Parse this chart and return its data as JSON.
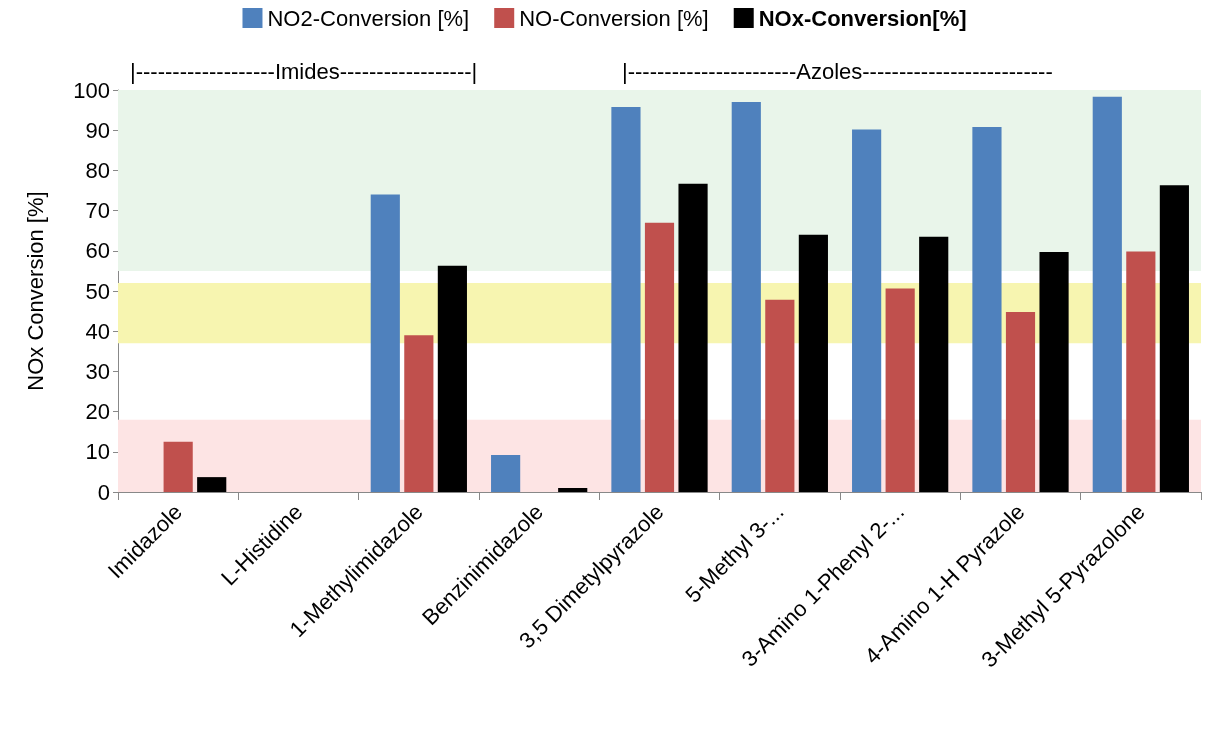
{
  "chart_data": {
    "type": "bar",
    "ylabel": "NOx Conversion [%]",
    "categories": [
      "Imidazole",
      "L-Histidine",
      "1-Methylimidazole",
      "Benzinimidazole",
      "3,5 Dimetylpyrazole",
      "5-Methyl 3-...",
      "3-Amino 1-Phenyl 2-...",
      "4-Amino 1-H Pyrazole",
      "3-Methyl 5-Pyrazolone"
    ],
    "series": [
      {
        "name": "NO2-Conversion [%]",
        "color": "#4f81bd",
        "values": [
          0,
          0,
          74,
          9.2,
          95.8,
          97,
          90.2,
          90.8,
          98.3
        ]
      },
      {
        "name": "NO-Conversion [%]",
        "color": "#c0504d",
        "values": [
          12.5,
          0,
          39,
          0,
          67,
          47.8,
          50.6,
          44.8,
          59.8
        ]
      },
      {
        "name": "NOx-Conversion[%]",
        "color": "#000000",
        "values": [
          3.7,
          0,
          56.3,
          1,
          76.7,
          64,
          63.5,
          59.7,
          76.3
        ]
      }
    ],
    "ylim": [
      0,
      100
    ],
    "yticks": [
      0,
      10,
      20,
      30,
      40,
      50,
      60,
      70,
      80,
      90,
      100
    ],
    "grid": false,
    "legend": "top",
    "bands": [
      {
        "axis": "y",
        "from": 55,
        "to": 100,
        "color": "#e9f5ea"
      },
      {
        "axis": "y",
        "from": 37,
        "to": 52,
        "color": "#f7f5b0"
      },
      {
        "axis": "y",
        "from": 0,
        "to": 18,
        "color": "#fde4e4"
      }
    ],
    "annotations": [
      "|-------------------Imides------------------|",
      "|-----------------------Azoles--------------------------"
    ]
  }
}
